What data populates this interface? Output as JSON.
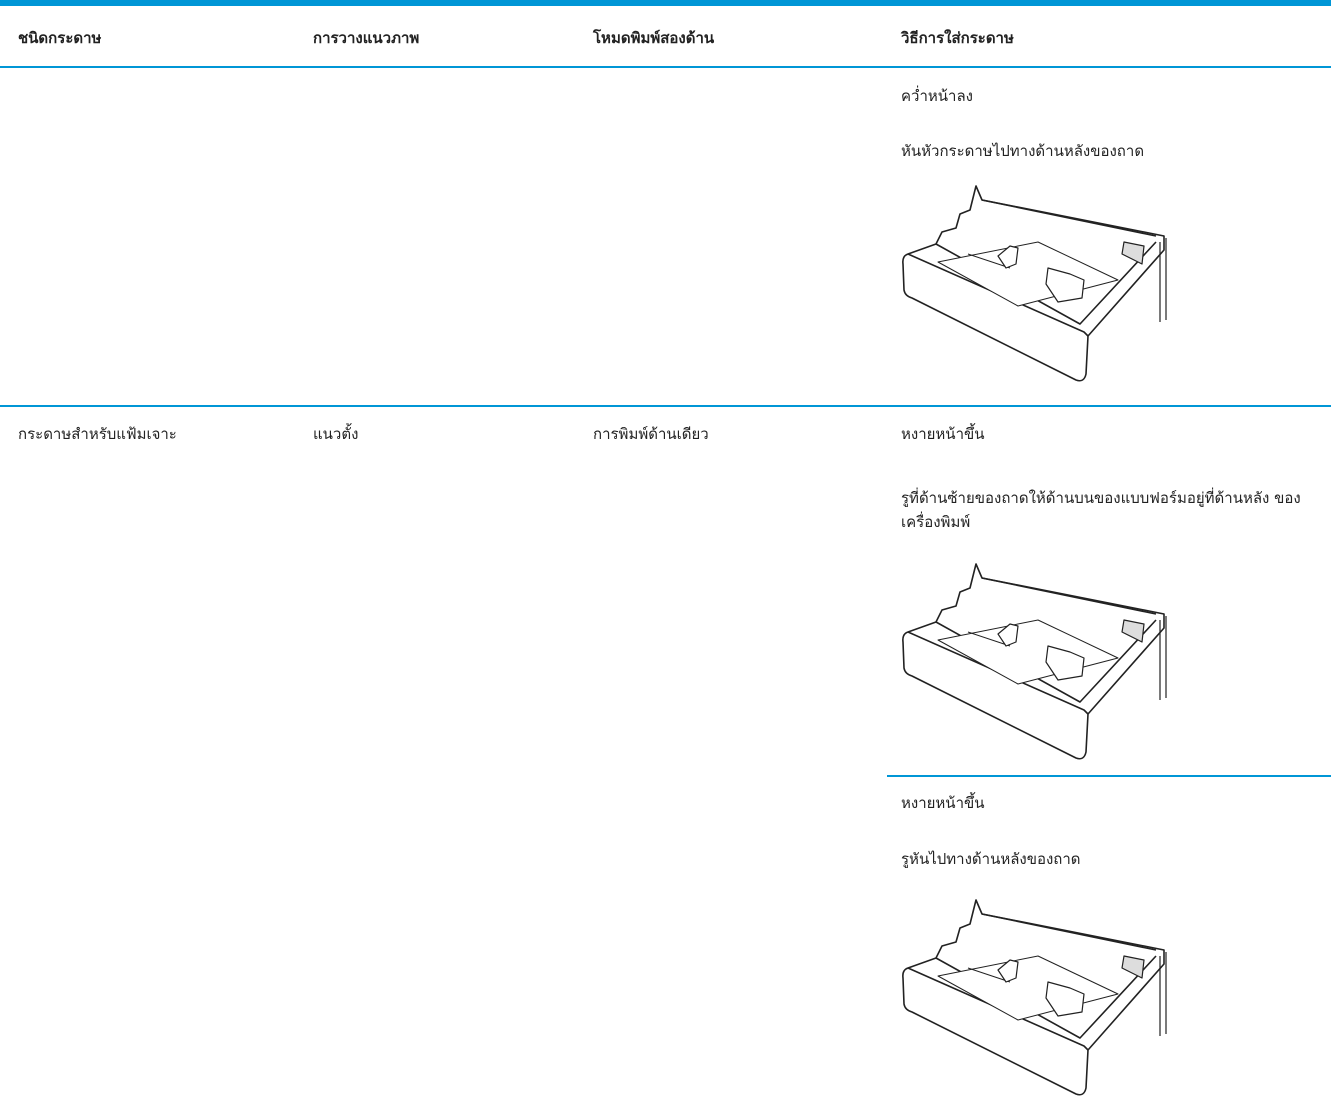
{
  "table": {
    "headers": [
      "ชนิดกระดาษ",
      "การวางแนวภาพ",
      "โหมดพิมพ์สองด้าน",
      "วิธีการใส่กระดาษ"
    ],
    "rows": [
      {
        "instructions": [
          {
            "orientation": "คว่ำหน้าลง",
            "direction": "หันหัวกระดาษไปทางด้านหลังของถาด"
          }
        ]
      },
      {
        "paper_type": "กระดาษสำหรับแฟ้มเจาะ",
        "image_orientation": "แนวตั้ง",
        "duplex_mode": "การพิมพ์ด้านเดียว",
        "instructions": [
          {
            "orientation": "หงายหน้าขึ้น",
            "direction": "รูที่ด้านซ้ายของถาดให้ด้านบนของแบบฟอร์มอยู่ที่ด้านหลัง ของเครื่องพิมพ์"
          },
          {
            "orientation": "หงายหน้าขึ้น",
            "direction": "รูหันไปทางด้านหลังของถาด"
          }
        ]
      }
    ]
  }
}
